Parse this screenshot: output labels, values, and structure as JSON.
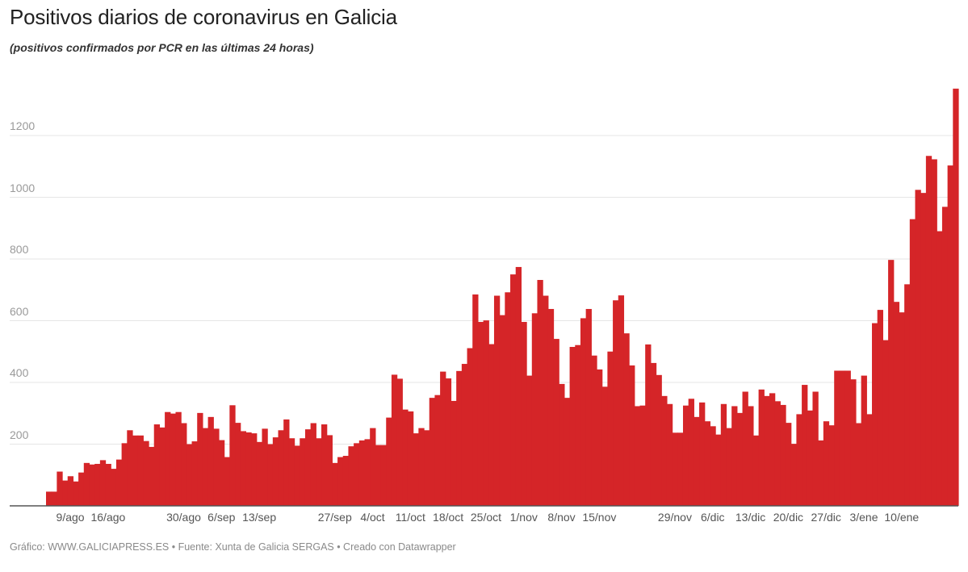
{
  "header": {
    "title": "Positivos diarios de coronavirus en Galicia",
    "subtitle": "(positivos confirmados por PCR en las últimas 24 horas)"
  },
  "footer": {
    "text": "Gráfico: WWW.GALICIAPRESS.ES • Fuente: Xunta de Galicia SERGAS • Creado con Datawrapper"
  },
  "colors": {
    "bar": "#d52528",
    "grid": "#e6e6e6",
    "axis": "#555555"
  },
  "chart_data": {
    "type": "bar",
    "title": "Positivos diarios de coronavirus en Galicia",
    "subtitle": "(positivos confirmados por PCR en las últimas 24 horas)",
    "xlabel": "",
    "ylabel": "",
    "ylim": [
      0,
      1360
    ],
    "yticks": [
      200,
      400,
      600,
      800,
      1000,
      1200
    ],
    "grid": true,
    "legend": "none",
    "date_range": [
      "5/ago",
      "20/ene"
    ],
    "xtick_labels": [
      {
        "label": "9/ago",
        "index": 4
      },
      {
        "label": "16/ago",
        "index": 11
      },
      {
        "label": "30/ago",
        "index": 25
      },
      {
        "label": "6/sep",
        "index": 32
      },
      {
        "label": "13/sep",
        "index": 39
      },
      {
        "label": "27/sep",
        "index": 53
      },
      {
        "label": "4/oct",
        "index": 60
      },
      {
        "label": "11/oct",
        "index": 67
      },
      {
        "label": "18/oct",
        "index": 74
      },
      {
        "label": "25/oct",
        "index": 81
      },
      {
        "label": "1/nov",
        "index": 88
      },
      {
        "label": "8/nov",
        "index": 95
      },
      {
        "label": "15/nov",
        "index": 102
      },
      {
        "label": "29/nov",
        "index": 116
      },
      {
        "label": "6/dic",
        "index": 123
      },
      {
        "label": "13/dic",
        "index": 130
      },
      {
        "label": "20/dic",
        "index": 137
      },
      {
        "label": "27/dic",
        "index": 144
      },
      {
        "label": "3/ene",
        "index": 151
      },
      {
        "label": "10/ene",
        "index": 158
      }
    ],
    "series": [
      {
        "name": "Positivos diarios",
        "values": [
          46,
          46,
          111,
          82,
          96,
          79,
          108,
          139,
          134,
          136,
          148,
          136,
          120,
          150,
          203,
          245,
          228,
          228,
          210,
          191,
          264,
          254,
          304,
          299,
          304,
          268,
          200,
          209,
          301,
          252,
          288,
          250,
          213,
          158,
          326,
          269,
          242,
          238,
          235,
          207,
          250,
          200,
          222,
          245,
          280,
          219,
          195,
          219,
          248,
          268,
          219,
          264,
          229,
          139,
          158,
          162,
          193,
          203,
          212,
          216,
          252,
          197,
          197,
          286,
          425,
          412,
          312,
          306,
          235,
          252,
          245,
          350,
          359,
          435,
          413,
          340,
          437,
          460,
          511,
          685,
          596,
          601,
          524,
          681,
          618,
          692,
          750,
          774,
          596,
          422,
          624,
          732,
          681,
          638,
          541,
          395,
          350,
          515,
          521,
          608,
          638,
          487,
          442,
          386,
          500,
          666,
          682,
          559,
          455,
          323,
          325,
          523,
          463,
          424,
          356,
          330,
          237,
          237,
          325,
          347,
          288,
          335,
          274,
          258,
          231,
          330,
          252,
          323,
          301,
          370,
          323,
          228,
          377,
          356,
          365,
          339,
          327,
          269,
          201,
          297,
          392,
          309,
          370,
          212,
          274,
          261,
          438,
          438,
          438,
          410,
          268,
          422,
          297,
          592,
          635,
          537,
          797,
          661,
          627,
          718,
          929,
          1024,
          1014,
          1134,
          1123,
          890,
          969,
          1103,
          1352
        ]
      }
    ]
  }
}
